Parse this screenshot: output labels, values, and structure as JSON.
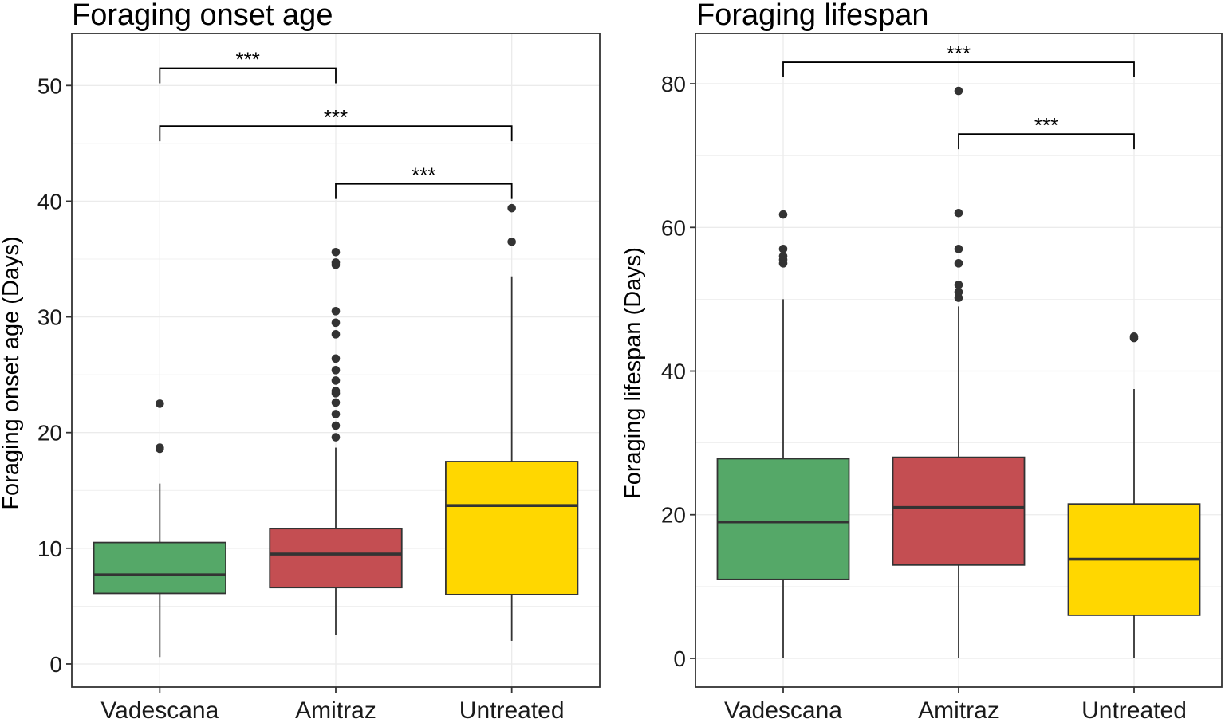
{
  "chart_data": [
    {
      "type": "box",
      "title": "Foraging onset age",
      "xlabel": "",
      "ylabel": "Foraging onset age (Days)",
      "ylim": [
        -2,
        54.5
      ],
      "yticks": [
        0,
        10,
        20,
        30,
        40,
        50
      ],
      "grid": true,
      "categories": [
        "Vadescana",
        "Amitraz",
        "Untreated"
      ],
      "colors": [
        "#55a868",
        "#c44e52",
        "#ffd700"
      ],
      "boxes": [
        {
          "category": "Vadescana",
          "whisker_low": 0.6,
          "q1": 6.1,
          "median": 7.7,
          "q3": 10.5,
          "whisker_high": 15.6,
          "outliers": [
            18.6,
            18.7,
            22.5
          ]
        },
        {
          "category": "Amitraz",
          "whisker_low": 2.5,
          "q1": 6.6,
          "median": 9.5,
          "q3": 11.7,
          "whisker_high": 18.7,
          "outliers": [
            19.6,
            20.6,
            21.6,
            22.6,
            23.4,
            23.6,
            24.5,
            25.4,
            26.4,
            28.5,
            29.5,
            30.5,
            34.5,
            34.7,
            35.6
          ]
        },
        {
          "category": "Untreated",
          "whisker_low": 2.0,
          "q1": 6.0,
          "median": 13.7,
          "q3": 17.5,
          "whisker_high": 33.5,
          "outliers": [
            36.5,
            39.4
          ]
        }
      ],
      "significance": [
        {
          "from": "Vadescana",
          "to": "Amitraz",
          "y": 51.5,
          "label": "***"
        },
        {
          "from": "Vadescana",
          "to": "Untreated",
          "y": 46.5,
          "label": "***"
        },
        {
          "from": "Amitraz",
          "to": "Untreated",
          "y": 41.5,
          "label": "***"
        }
      ]
    },
    {
      "type": "box",
      "title": "Foraging lifespan",
      "xlabel": "",
      "ylabel": "Foraging lifespan (Days)",
      "ylim": [
        -4,
        87
      ],
      "yticks": [
        0,
        20,
        40,
        60,
        80
      ],
      "grid": true,
      "categories": [
        "Vadescana",
        "Amitraz",
        "Untreated"
      ],
      "colors": [
        "#55a868",
        "#c44e52",
        "#ffd700"
      ],
      "boxes": [
        {
          "category": "Vadescana",
          "whisker_low": 0,
          "q1": 11,
          "median": 19,
          "q3": 27.8,
          "whisker_high": 50,
          "outliers": [
            55,
            55.5,
            56,
            57,
            61.8
          ]
        },
        {
          "category": "Amitraz",
          "whisker_low": 0,
          "q1": 13,
          "median": 21,
          "q3": 28,
          "whisker_high": 49,
          "outliers": [
            50.2,
            51,
            52,
            55,
            57,
            62,
            79
          ]
        },
        {
          "category": "Untreated",
          "whisker_low": 0,
          "q1": 6,
          "median": 13.8,
          "q3": 21.5,
          "whisker_high": 37.5,
          "outliers": [
            44.6,
            44.8
          ]
        }
      ],
      "significance": [
        {
          "from": "Vadescana",
          "to": "Untreated",
          "y": 83,
          "label": "***"
        },
        {
          "from": "Amitraz",
          "to": "Untreated",
          "y": 73,
          "label": "***"
        }
      ]
    }
  ]
}
